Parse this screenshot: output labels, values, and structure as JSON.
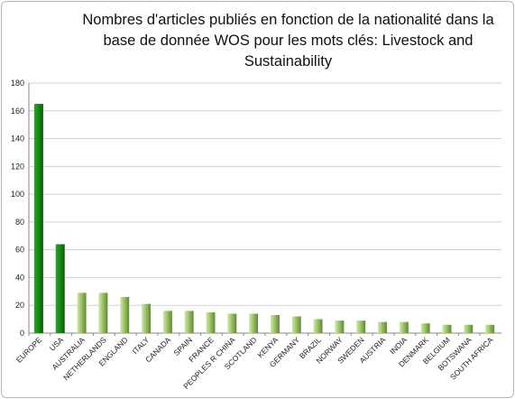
{
  "chart_data": {
    "type": "bar",
    "title": "Nombres d'articles publiés en fonction de la nationalité dans la base de donnée WOS pour les mots clés: Livestock and Sustainability",
    "xlabel": "",
    "ylabel": "",
    "ylim": [
      0,
      180
    ],
    "yticks": [
      0,
      20,
      40,
      60,
      80,
      100,
      120,
      140,
      160,
      180
    ],
    "grid": true,
    "legend": "none",
    "categories": [
      "EUROPE",
      "USA",
      "AUSTRALIA",
      "NETHERLANDS",
      "ENGLAND",
      "ITALY",
      "CANADA",
      "SPAIN",
      "FRANCE",
      "PEOPLES R CHINA",
      "SCOTLAND",
      "KENYA",
      "GERMANY",
      "BRAZIL",
      "NORWAY",
      "SWEDEN",
      "AUSTRIA",
      "INDIA",
      "DENMARK",
      "BELGIUM",
      "BOTSWANA",
      "SOUTH AFRICA"
    ],
    "values": [
      165,
      64,
      29,
      29,
      26,
      21,
      16,
      16,
      15,
      14,
      14,
      13,
      12,
      10,
      9,
      9,
      8,
      8,
      7,
      6,
      6,
      6
    ],
    "highlight_count": 2,
    "colors": {
      "highlight_light": "#3a9a3a",
      "highlight_mid": "#138f13",
      "highlight_dark": "#0a5a0a",
      "normal_light": "#d3e8b0",
      "normal_mid": "#9cc46a",
      "normal_dark": "#5e8a34",
      "grid": "#d0d0d0",
      "axis": "#888888"
    }
  }
}
